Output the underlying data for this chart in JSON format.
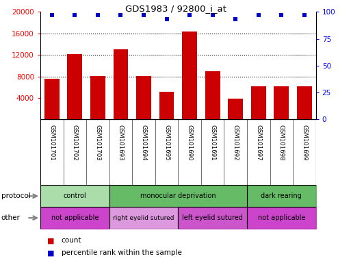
{
  "title": "GDS1983 / 92800_i_at",
  "samples": [
    "GSM101701",
    "GSM101702",
    "GSM101703",
    "GSM101693",
    "GSM101694",
    "GSM101695",
    "GSM101690",
    "GSM101691",
    "GSM101692",
    "GSM101697",
    "GSM101698",
    "GSM101699"
  ],
  "counts": [
    7500,
    12200,
    8100,
    13000,
    8100,
    5200,
    16400,
    9000,
    3900,
    6200,
    6100,
    6200
  ],
  "percentile_ranks": [
    97,
    97,
    97,
    97,
    97,
    93,
    97,
    97,
    93,
    97,
    97,
    97
  ],
  "bar_color": "#cc0000",
  "dot_color": "#0000cc",
  "ylim_left": [
    0,
    20000
  ],
  "ylim_right": [
    0,
    100
  ],
  "yticks_left": [
    4000,
    8000,
    12000,
    16000,
    20000
  ],
  "yticks_right": [
    0,
    25,
    50,
    75,
    100
  ],
  "bg_color": "#ffffff",
  "label_bg": "#d3d3d3",
  "proto_groups": [
    {
      "label": "control",
      "start": 0,
      "end": 3,
      "color": "#aaddaa"
    },
    {
      "label": "monocular deprivation",
      "start": 3,
      "end": 9,
      "color": "#66bb66"
    },
    {
      "label": "dark rearing",
      "start": 9,
      "end": 12,
      "color": "#66bb66"
    }
  ],
  "other_groups": [
    {
      "label": "not applicable",
      "start": 0,
      "end": 3,
      "color": "#cc44cc"
    },
    {
      "label": "right eyelid sutured",
      "start": 3,
      "end": 6,
      "color": "#dd99dd"
    },
    {
      "label": "left eyelid sutured",
      "start": 6,
      "end": 9,
      "color": "#cc55cc"
    },
    {
      "label": "not applicable",
      "start": 9,
      "end": 12,
      "color": "#cc44cc"
    }
  ],
  "legend_count_color": "#cc0000",
  "legend_pct_color": "#0000cc",
  "figsize": [
    5.13,
    3.84
  ],
  "dpi": 100
}
